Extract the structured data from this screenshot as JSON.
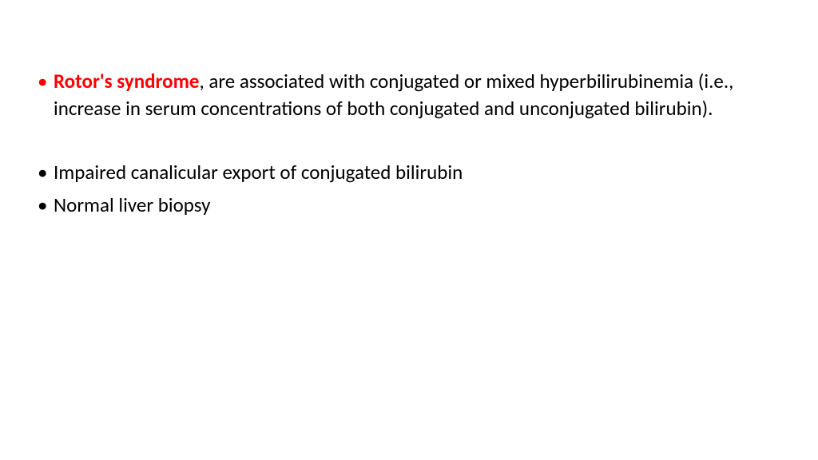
{
  "slide": {
    "background_color": "#ffffff",
    "text_color": "#000000",
    "highlight_color": "#ff0000",
    "font_family": "Calibri",
    "font_size_pt": 18,
    "bullets": [
      {
        "highlight": "Rotor's syndrome",
        "rest": ", are associated with conjugated or mixed hyperbilirubinemia (i.e., increase in serum concentrations of both conjugated and unconjugated bilirubin)."
      },
      {
        "highlight": "",
        "rest": "Impaired canalicular export of conjugated bilirubin"
      },
      {
        "highlight": "",
        "rest": "Normal liver biopsy"
      }
    ]
  }
}
